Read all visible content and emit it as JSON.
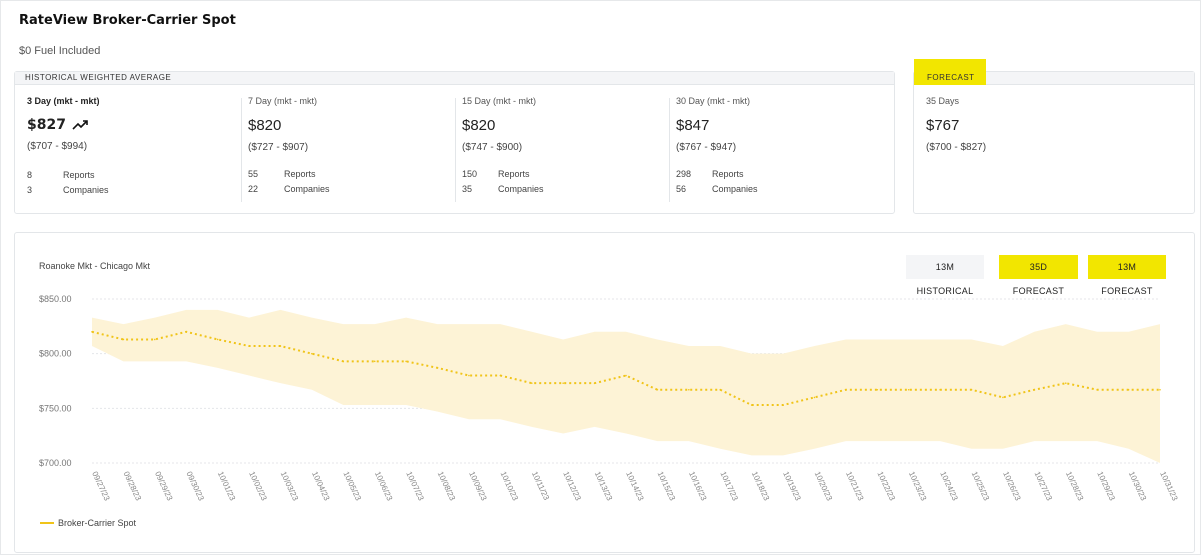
{
  "header": {
    "title": "RateView Broker-Carrier Spot",
    "subtitle": "$0 Fuel Included"
  },
  "historical": {
    "label": "HISTORICAL WEIGHTED AVERAGE",
    "columns": [
      {
        "period": "3 Day (mkt - mkt)",
        "value": "$827",
        "range": "($707 - $994)",
        "reports_count": "8",
        "reports_label": "Reports",
        "companies_count": "3",
        "companies_label": "Companies",
        "trend_icon": "trending-up-icon"
      },
      {
        "period": "7 Day (mkt - mkt)",
        "value": "$820",
        "range": "($727 - $907)",
        "reports_count": "55",
        "reports_label": "Reports",
        "companies_count": "22",
        "companies_label": "Companies"
      },
      {
        "period": "15 Day (mkt - mkt)",
        "value": "$820",
        "range": "($747 - $900)",
        "reports_count": "150",
        "reports_label": "Reports",
        "companies_count": "35",
        "companies_label": "Companies"
      },
      {
        "period": "30 Day (mkt - mkt)",
        "value": "$847",
        "range": "($767 - $947)",
        "reports_count": "298",
        "reports_label": "Reports",
        "companies_count": "56",
        "companies_label": "Companies"
      }
    ]
  },
  "forecast": {
    "label": "FORECAST",
    "period": "35 Days",
    "value": "$767",
    "range": "($700 - $827)"
  },
  "chart_panel": {
    "lane": "Roanoke Mkt - Chicago Mkt",
    "buttons": {
      "historical": "13M HISTORICAL",
      "forecast_35d": "35D FORECAST",
      "forecast_13m": "13M FORECAST"
    },
    "colors": {
      "accent": "#f2e600",
      "band": "#fdf3d6",
      "line": "#f0c419"
    }
  },
  "chart_data": {
    "type": "line",
    "title": "",
    "xlabel": "",
    "ylabel": "",
    "ylim": [
      700,
      850
    ],
    "yticks": [
      "$850.00",
      "$800.00",
      "$750.00",
      "$700.00"
    ],
    "grid": true,
    "legend_position": "bottom-left",
    "categories": [
      "09/27/23",
      "09/28/23",
      "09/29/23",
      "09/30/23",
      "10/01/23",
      "10/02/23",
      "10/03/23",
      "10/04/23",
      "10/05/23",
      "10/06/23",
      "10/07/23",
      "10/08/23",
      "10/09/23",
      "10/10/23",
      "10/11/23",
      "10/12/23",
      "10/13/23",
      "10/14/23",
      "10/15/23",
      "10/16/23",
      "10/17/23",
      "10/18/23",
      "10/19/23",
      "10/20/23",
      "10/21/23",
      "10/22/23",
      "10/23/23",
      "10/24/23",
      "10/25/23",
      "10/26/23",
      "10/27/23",
      "10/28/23",
      "10/29/23",
      "10/30/23",
      "10/31/23"
    ],
    "series": [
      {
        "name": "Broker-Carrier Spot",
        "values": [
          820,
          813,
          813,
          820,
          813,
          807,
          807,
          800,
          793,
          793,
          793,
          787,
          780,
          780,
          773,
          773,
          773,
          780,
          767,
          767,
          767,
          753,
          753,
          760,
          767,
          767,
          767,
          767,
          767,
          760,
          767,
          773,
          767,
          767,
          767
        ]
      }
    ],
    "band": {
      "upper": [
        833,
        827,
        833,
        840,
        840,
        833,
        840,
        833,
        827,
        827,
        833,
        827,
        827,
        827,
        820,
        813,
        820,
        820,
        813,
        807,
        807,
        800,
        800,
        807,
        813,
        813,
        813,
        813,
        813,
        807,
        820,
        827,
        820,
        820,
        827
      ],
      "lower": [
        807,
        793,
        793,
        793,
        787,
        780,
        773,
        767,
        753,
        753,
        753,
        747,
        740,
        740,
        733,
        727,
        733,
        727,
        720,
        720,
        713,
        707,
        707,
        713,
        720,
        720,
        720,
        720,
        713,
        713,
        720,
        720,
        720,
        713,
        700
      ]
    }
  },
  "legend": {
    "items": [
      {
        "label": "Broker-Carrier Spot"
      }
    ]
  }
}
